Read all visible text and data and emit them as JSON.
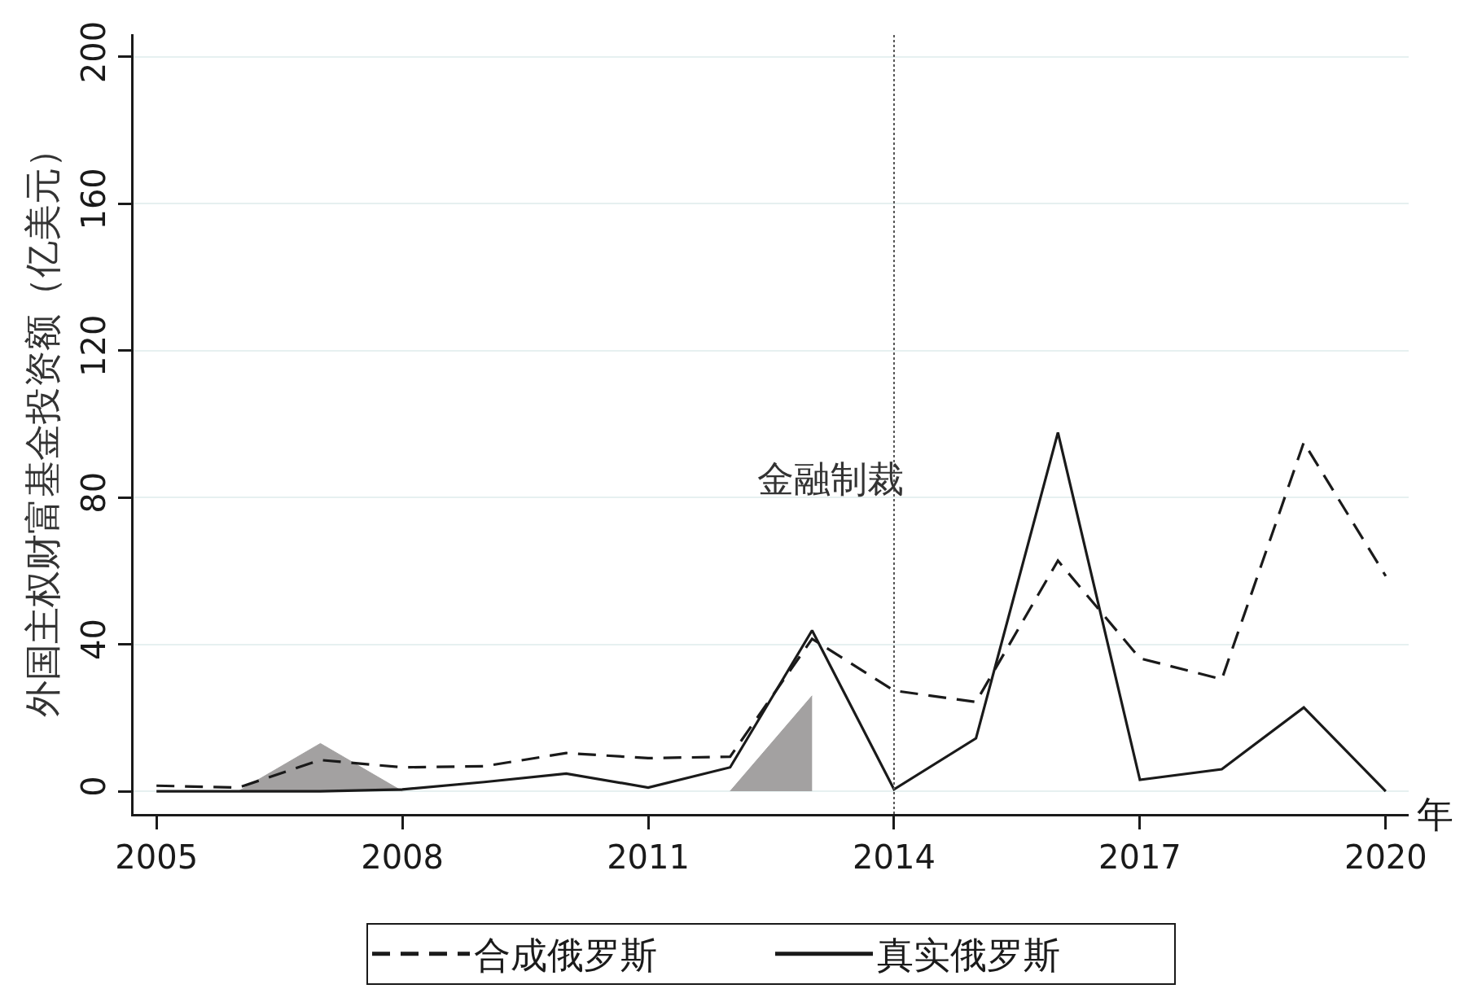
{
  "chart_data": {
    "type": "line",
    "ylabel": "外国主权财富基金投资额（亿美元）",
    "xlabel": "年",
    "x": [
      2005,
      2006,
      2007,
      2008,
      2009,
      2010,
      2011,
      2012,
      2013,
      2014,
      2015,
      2016,
      2017,
      2018,
      2019,
      2020
    ],
    "series": [
      {
        "name": "合成俄罗斯",
        "color": "#1a1a1a",
        "line_style": "dashed",
        "values": [
          1.5,
          1,
          8.5,
          6.5,
          6.8,
          10.4,
          9,
          9.4,
          41.5,
          27.4,
          24.3,
          62.8,
          36.2,
          30.5,
          95,
          58.6
        ]
      },
      {
        "name": "真实俄罗斯",
        "color": "#1a1a1a",
        "line_style": "solid",
        "values": [
          0,
          0,
          0,
          0.5,
          2.5,
          4.8,
          1,
          6.5,
          43.8,
          0.5,
          14.4,
          97.7,
          3.1,
          6,
          22.8,
          0
        ]
      },
      {
        "type": "area",
        "color": "#a3a1a1",
        "x": [
          2006,
          2007,
          2008
        ],
        "values": [
          0,
          13,
          0
        ]
      },
      {
        "type": "area",
        "color": "#a3a1a1",
        "x": [
          2012,
          2013
        ],
        "values": [
          0,
          26
        ]
      }
    ],
    "xlim": [
      2004.72,
      2020.28
    ],
    "xticks": [
      2005,
      2008,
      2011,
      2014,
      2017,
      2020
    ],
    "ylim": [
      -6.2,
      206.2
    ],
    "yticks": [
      0,
      40,
      80,
      120,
      160,
      200
    ],
    "grid": "y",
    "legend": "bottom",
    "ref_lines": [
      {
        "axis": "x",
        "value": 2014,
        "label": "金融制裁",
        "color": "#555555",
        "line_style": "dotted"
      }
    ]
  }
}
